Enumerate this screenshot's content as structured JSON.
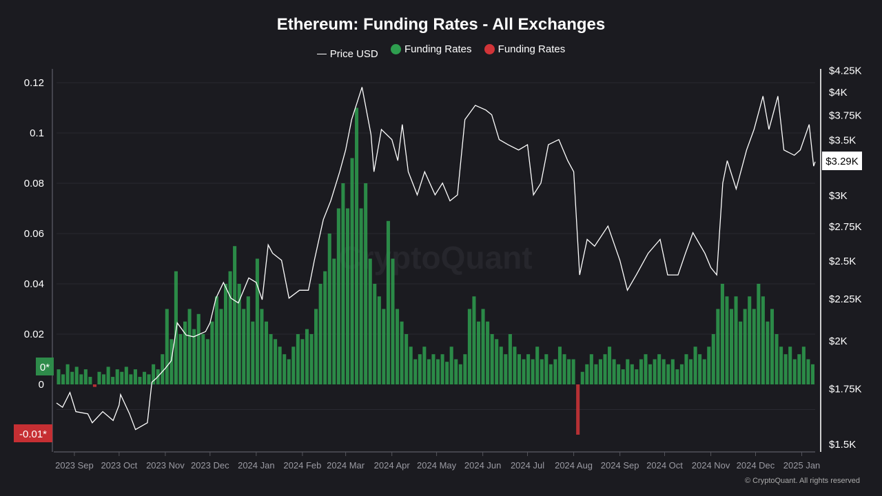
{
  "chart_data": {
    "type": "bar+line",
    "title": "Ethereum: Funding Rates - All Exchanges",
    "legend": [
      "Price USD",
      "Funding Rates",
      "Funding Rates"
    ],
    "legend_placement": "top",
    "colors": {
      "price": "#ffffff",
      "positive": "#2e9e4f",
      "negative": "#d13438",
      "background": "#1b1b20"
    },
    "x_range": [
      "2023-08-20",
      "2025-01-10"
    ],
    "x_ticks": [
      "2023 Sep",
      "2023 Oct",
      "2023 Nov",
      "2023 Dec",
      "2024 Jan",
      "2024 Feb",
      "2024 Mar",
      "2024 Apr",
      "2024 May",
      "2024 Jun",
      "2024 Jul",
      "2024 Aug",
      "2024 Sep",
      "2024 Oct",
      "2024 Nov",
      "2024 Dec",
      "2025 Jan"
    ],
    "x_tick_dates": [
      "2023-09-01",
      "2023-10-01",
      "2023-11-01",
      "2023-12-01",
      "2024-01-01",
      "2024-02-01",
      "2024-03-01",
      "2024-04-01",
      "2024-05-01",
      "2024-06-01",
      "2024-07-01",
      "2024-08-01",
      "2024-09-01",
      "2024-10-01",
      "2024-11-01",
      "2024-12-01",
      "2025-01-01"
    ],
    "left_axis": {
      "ylim": [
        -0.012,
        0.125
      ],
      "ticks": [
        "0.12",
        "0.1",
        "0.08",
        "0.06",
        "0.04",
        "0.02",
        "0"
      ],
      "tick_values": [
        0.12,
        0.1,
        0.08,
        0.06,
        0.04,
        0.02,
        0
      ],
      "grid": true
    },
    "right_axis": {
      "scale": "log",
      "ylim": [
        1450,
        4350
      ],
      "ticks": [
        "$4.25K",
        "$4K",
        "$3.75K",
        "$3.5K",
        "$3K",
        "$2.75K",
        "$2.5K",
        "$2.25K",
        "$2K",
        "$1.75K",
        "$1.5K"
      ],
      "tick_values": [
        4250,
        4000,
        3750,
        3500,
        3000,
        2750,
        2500,
        2250,
        2000,
        1750,
        1500
      ]
    },
    "markers": {
      "funding_max": "0*",
      "funding_min": "-0.01*",
      "last_price": "$3.29K"
    },
    "funding_rates": [
      0.006,
      0.004,
      0.008,
      0.005,
      0.007,
      0.004,
      0.006,
      0.003,
      -0.001,
      0.005,
      0.004,
      0.007,
      0.003,
      0.006,
      0.005,
      0.007,
      0.004,
      0.006,
      0.003,
      0.005,
      0.004,
      0.008,
      0.006,
      0.012,
      0.03,
      0.018,
      0.045,
      0.02,
      0.025,
      0.03,
      0.022,
      0.028,
      0.02,
      0.018,
      0.025,
      0.035,
      0.03,
      0.04,
      0.045,
      0.055,
      0.04,
      0.03,
      0.035,
      0.025,
      0.05,
      0.03,
      0.025,
      0.02,
      0.018,
      0.015,
      0.012,
      0.01,
      0.015,
      0.02,
      0.018,
      0.022,
      0.02,
      0.03,
      0.04,
      0.045,
      0.06,
      0.05,
      0.07,
      0.08,
      0.07,
      0.09,
      0.11,
      0.07,
      0.08,
      0.05,
      0.04,
      0.035,
      0.03,
      0.065,
      0.05,
      0.03,
      0.025,
      0.02,
      0.015,
      0.01,
      0.012,
      0.015,
      0.01,
      0.012,
      0.01,
      0.012,
      0.009,
      0.015,
      0.01,
      0.008,
      0.012,
      0.03,
      0.035,
      0.025,
      0.03,
      0.025,
      0.02,
      0.018,
      0.015,
      0.012,
      0.02,
      0.015,
      0.012,
      0.01,
      0.012,
      0.01,
      0.015,
      0.01,
      0.012,
      0.008,
      0.01,
      0.015,
      0.012,
      0.01,
      0.01,
      -0.02,
      0.005,
      0.008,
      0.012,
      0.008,
      0.01,
      0.012,
      0.015,
      0.01,
      0.008,
      0.006,
      0.01,
      0.008,
      0.006,
      0.01,
      0.012,
      0.008,
      0.01,
      0.012,
      0.01,
      0.008,
      0.01,
      0.006,
      0.008,
      0.012,
      0.01,
      0.015,
      0.012,
      0.01,
      0.015,
      0.02,
      0.03,
      0.04,
      0.035,
      0.03,
      0.035,
      0.025,
      0.03,
      0.035,
      0.03,
      0.04,
      0.035,
      0.025,
      0.03,
      0.02,
      0.015,
      0.012,
      0.015,
      0.01,
      0.012,
      0.015,
      0.01,
      0.008
    ],
    "price_usd": [
      [
        "2023-08-20",
        1680
      ],
      [
        "2023-08-24",
        1660
      ],
      [
        "2023-08-29",
        1730
      ],
      [
        "2023-09-02",
        1640
      ],
      [
        "2023-09-10",
        1630
      ],
      [
        "2023-09-13",
        1590
      ],
      [
        "2023-09-20",
        1640
      ],
      [
        "2023-09-27",
        1600
      ],
      [
        "2023-10-01",
        1670
      ],
      [
        "2023-10-02",
        1720
      ],
      [
        "2023-10-08",
        1630
      ],
      [
        "2023-10-12",
        1560
      ],
      [
        "2023-10-20",
        1590
      ],
      [
        "2023-10-23",
        1780
      ],
      [
        "2023-10-26",
        1800
      ],
      [
        "2023-11-01",
        1850
      ],
      [
        "2023-11-05",
        1890
      ],
      [
        "2023-11-09",
        2100
      ],
      [
        "2023-11-15",
        2030
      ],
      [
        "2023-11-20",
        2020
      ],
      [
        "2023-11-28",
        2050
      ],
      [
        "2023-12-01",
        2100
      ],
      [
        "2023-12-05",
        2250
      ],
      [
        "2023-12-10",
        2350
      ],
      [
        "2023-12-15",
        2250
      ],
      [
        "2023-12-20",
        2220
      ],
      [
        "2023-12-27",
        2380
      ],
      [
        "2024-01-01",
        2350
      ],
      [
        "2024-01-05",
        2240
      ],
      [
        "2024-01-09",
        2610
      ],
      [
        "2024-01-12",
        2550
      ],
      [
        "2024-01-18",
        2500
      ],
      [
        "2024-01-23",
        2250
      ],
      [
        "2024-01-30",
        2300
      ],
      [
        "2024-02-05",
        2300
      ],
      [
        "2024-02-09",
        2500
      ],
      [
        "2024-02-15",
        2800
      ],
      [
        "2024-02-20",
        2950
      ],
      [
        "2024-02-26",
        3200
      ],
      [
        "2024-03-01",
        3400
      ],
      [
        "2024-03-05",
        3700
      ],
      [
        "2024-03-12",
        4050
      ],
      [
        "2024-03-18",
        3550
      ],
      [
        "2024-03-20",
        3200
      ],
      [
        "2024-03-25",
        3600
      ],
      [
        "2024-04-01",
        3500
      ],
      [
        "2024-04-05",
        3300
      ],
      [
        "2024-04-08",
        3650
      ],
      [
        "2024-04-12",
        3200
      ],
      [
        "2024-04-18",
        3000
      ],
      [
        "2024-04-23",
        3200
      ],
      [
        "2024-04-30",
        3000
      ],
      [
        "2024-05-05",
        3100
      ],
      [
        "2024-05-10",
        2950
      ],
      [
        "2024-05-15",
        3000
      ],
      [
        "2024-05-20",
        3700
      ],
      [
        "2024-05-27",
        3850
      ],
      [
        "2024-06-03",
        3800
      ],
      [
        "2024-06-07",
        3750
      ],
      [
        "2024-06-12",
        3500
      ],
      [
        "2024-06-18",
        3450
      ],
      [
        "2024-06-25",
        3400
      ],
      [
        "2024-07-01",
        3450
      ],
      [
        "2024-07-05",
        3000
      ],
      [
        "2024-07-10",
        3100
      ],
      [
        "2024-07-15",
        3450
      ],
      [
        "2024-07-22",
        3500
      ],
      [
        "2024-07-28",
        3300
      ],
      [
        "2024-08-01",
        3200
      ],
      [
        "2024-08-05",
        2400
      ],
      [
        "2024-08-10",
        2650
      ],
      [
        "2024-08-15",
        2600
      ],
      [
        "2024-08-24",
        2750
      ],
      [
        "2024-09-01",
        2500
      ],
      [
        "2024-09-06",
        2300
      ],
      [
        "2024-09-12",
        2400
      ],
      [
        "2024-09-20",
        2550
      ],
      [
        "2024-09-28",
        2650
      ],
      [
        "2024-10-03",
        2400
      ],
      [
        "2024-10-10",
        2400
      ],
      [
        "2024-10-15",
        2550
      ],
      [
        "2024-10-20",
        2700
      ],
      [
        "2024-10-28",
        2550
      ],
      [
        "2024-11-01",
        2450
      ],
      [
        "2024-11-05",
        2400
      ],
      [
        "2024-11-09",
        3100
      ],
      [
        "2024-11-12",
        3300
      ],
      [
        "2024-11-18",
        3050
      ],
      [
        "2024-11-25",
        3400
      ],
      [
        "2024-11-30",
        3600
      ],
      [
        "2024-12-06",
        3950
      ],
      [
        "2024-12-10",
        3600
      ],
      [
        "2024-12-16",
        3950
      ],
      [
        "2024-12-20",
        3400
      ],
      [
        "2024-12-27",
        3350
      ],
      [
        "2024-12-31",
        3400
      ],
      [
        "2025-01-06",
        3650
      ],
      [
        "2025-01-09",
        3250
      ],
      [
        "2025-01-10",
        3290
      ]
    ]
  },
  "watermark": "CryptoQuant",
  "copyright": "© CryptoQuant. All rights reserved"
}
